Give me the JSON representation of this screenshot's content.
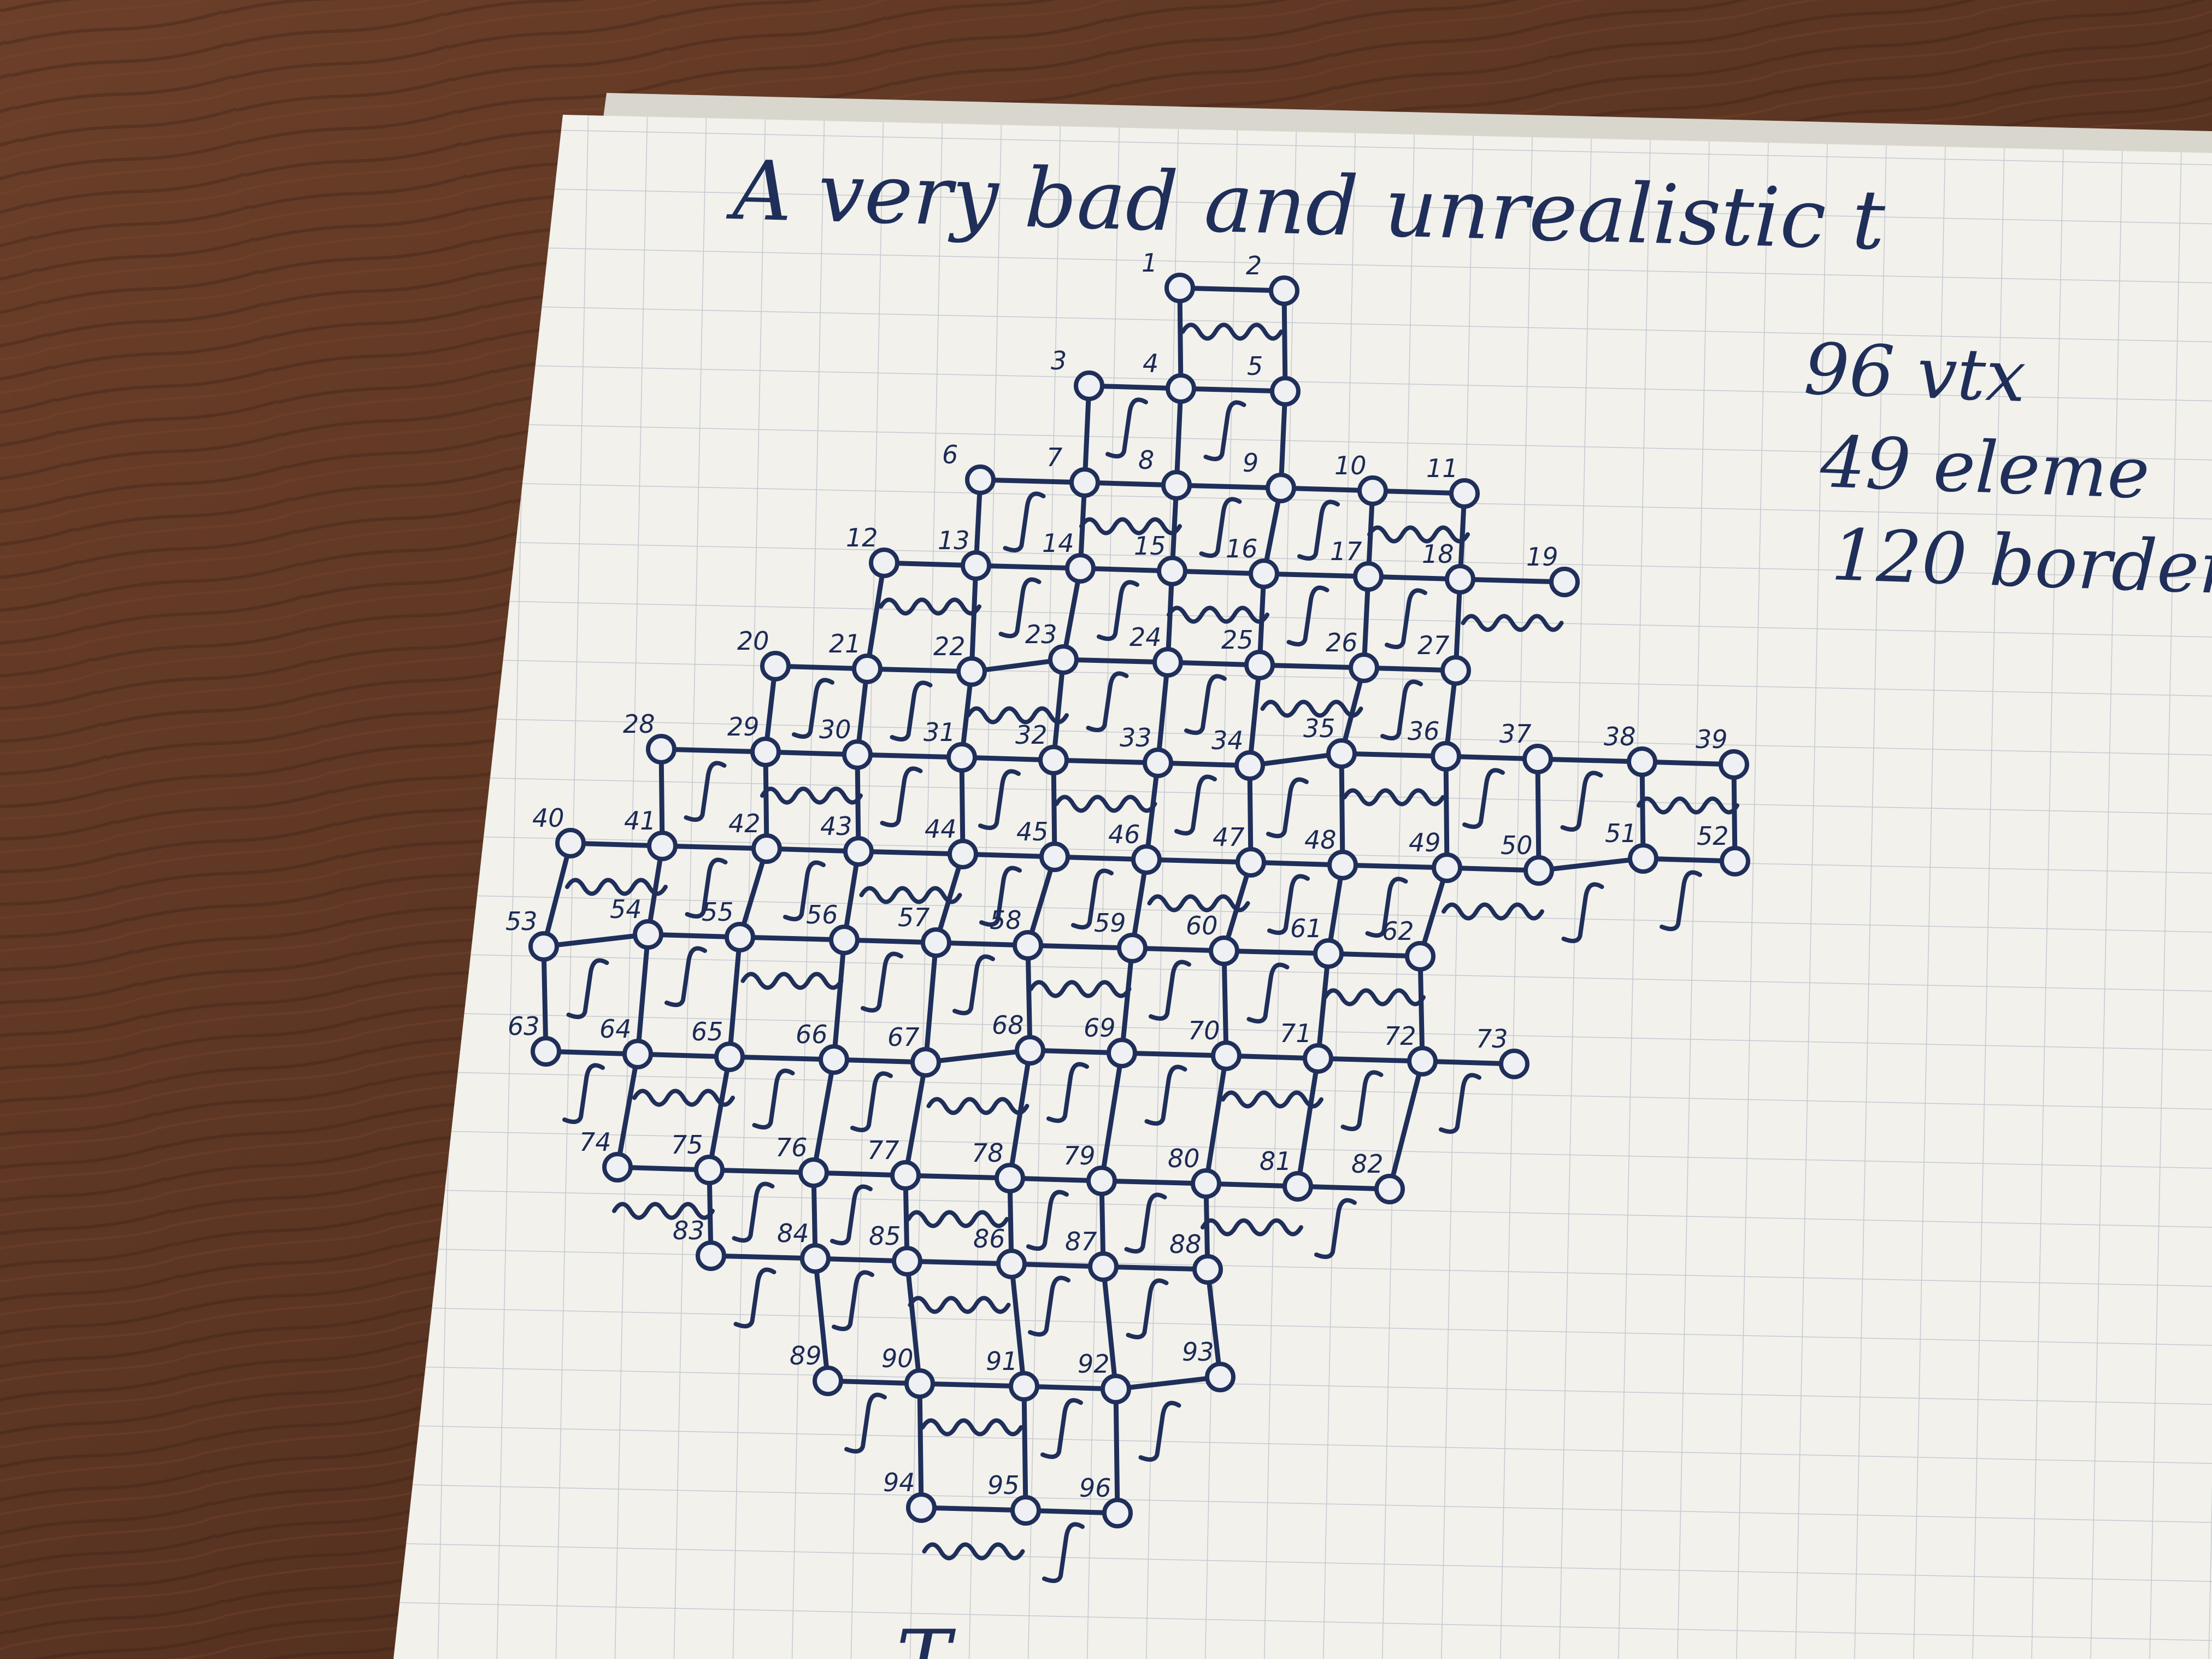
{
  "page": {
    "title": "A very bad and unrealistic t",
    "notes": [
      "96 vtx",
      "49 eleme",
      "120 border"
    ],
    "bottom_fragment": "T"
  },
  "colors": {
    "desk": "#5a3422",
    "desk_dark": "#3e2216",
    "paper": "#f2f1ec",
    "grid": "#c9ccd2",
    "ink": "#1f2f5a"
  },
  "mesh": {
    "rows": [
      {
        "labels": [
          "1",
          "2"
        ]
      },
      {
        "labels": [
          "3",
          "4",
          "5"
        ]
      },
      {
        "labels": [
          "6",
          "7",
          "8",
          "9",
          "10",
          "11"
        ]
      },
      {
        "labels": [
          "12",
          "13",
          "14",
          "15",
          "16",
          "17",
          "18",
          "19"
        ]
      },
      {
        "labels": [
          "20",
          "21",
          "22",
          "23",
          "24",
          "25",
          "26",
          "27"
        ]
      },
      {
        "labels": [
          "28",
          "29",
          "30",
          "31",
          "32",
          "33",
          "34",
          "35",
          "36",
          "37",
          "38",
          "39"
        ]
      },
      {
        "labels": [
          "40",
          "41",
          "42",
          "43",
          "44",
          "45",
          "46",
          "47",
          "48",
          "49",
          "50",
          "51",
          "52"
        ]
      },
      {
        "labels": [
          "53",
          "54",
          "55",
          "56",
          "57",
          "58",
          "59",
          "60",
          "61",
          "62"
        ]
      },
      {
        "labels": [
          "63",
          "64",
          "65",
          "66",
          "67",
          "68",
          "69",
          "70",
          "71",
          "72",
          "73"
        ]
      },
      {
        "labels": [
          "74",
          "75",
          "76",
          "77",
          "78",
          "79",
          "80",
          "81",
          "82"
        ]
      },
      {
        "labels": [
          "83",
          "84",
          "85",
          "86",
          "87",
          "88"
        ]
      },
      {
        "labels": [
          "89",
          "90",
          "91",
          "92",
          "93"
        ]
      },
      {
        "labels": [
          "94",
          "95",
          "96"
        ]
      }
    ]
  }
}
